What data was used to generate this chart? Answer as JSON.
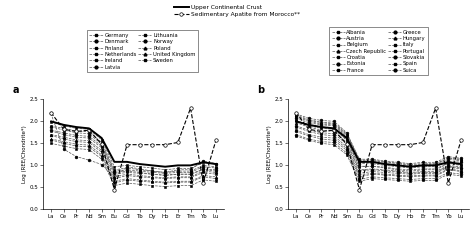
{
  "elements": [
    "La",
    "Ce",
    "Pr",
    "Nd",
    "Sm",
    "Eu",
    "Gd",
    "Tb",
    "Dy",
    "Ho",
    "Er",
    "Tm",
    "Yb",
    "Lu"
  ],
  "title_line1": "Upper Continental Crust",
  "title_line2": "Sedimentary Apatite from Morocco**",
  "ylabel": "Log (REE/Chondrite*)",
  "UCC": [
    2.0,
    1.92,
    1.87,
    1.84,
    1.62,
    1.08,
    1.08,
    1.03,
    1.0,
    0.97,
    1.0,
    1.0,
    1.07,
    1.03
  ],
  "Morocco": [
    2.2,
    1.82,
    1.77,
    1.8,
    1.48,
    0.45,
    1.47,
    1.47,
    1.47,
    1.47,
    1.52,
    2.3,
    0.6,
    1.57
  ],
  "panel_a_countries": [
    "Germany",
    "Denmark",
    "Finland",
    "Netherlands",
    "Ireland",
    "Latvia",
    "Lithuania",
    "Norway",
    "Poland",
    "United Kingdom",
    "Sweden"
  ],
  "panel_a_markers": [
    "s",
    "o",
    "s",
    "s",
    "s",
    "o",
    "s",
    "o",
    "^",
    "^",
    "s"
  ],
  "panel_a_linestyles": [
    "--",
    "--",
    "--",
    "--",
    "--",
    "--",
    "--",
    "--",
    "--",
    "--",
    "--"
  ],
  "panel_a_data": {
    "Germany": [
      1.98,
      1.9,
      1.84,
      1.82,
      1.58,
      0.97,
      1.0,
      0.97,
      0.94,
      0.9,
      0.93,
      0.93,
      1.07,
      1.03
    ],
    "Denmark": [
      1.88,
      1.8,
      1.74,
      1.72,
      1.48,
      0.87,
      0.9,
      0.87,
      0.84,
      0.82,
      0.84,
      0.84,
      0.97,
      0.94
    ],
    "Finland": [
      1.78,
      1.7,
      1.64,
      1.62,
      1.4,
      0.8,
      0.84,
      0.82,
      0.8,
      0.77,
      0.8,
      0.8,
      0.9,
      0.87
    ],
    "Netherlands": [
      1.68,
      1.6,
      1.54,
      1.52,
      1.3,
      0.7,
      0.77,
      0.74,
      0.72,
      0.7,
      0.72,
      0.72,
      0.84,
      0.8
    ],
    "Ireland": [
      1.58,
      1.5,
      1.44,
      1.42,
      1.2,
      0.6,
      0.67,
      0.64,
      0.62,
      0.6,
      0.62,
      0.62,
      0.74,
      0.7
    ],
    "Latvia": [
      2.18,
      1.37,
      1.2,
      1.12,
      1.02,
      0.72,
      0.97,
      0.92,
      0.87,
      0.84,
      0.9,
      0.9,
      1.1,
      1.04
    ],
    "Lithuania": [
      1.9,
      1.84,
      1.78,
      1.76,
      1.52,
      0.9,
      0.94,
      0.9,
      0.87,
      0.84,
      0.87,
      0.87,
      1.0,
      0.97
    ],
    "Norway": [
      1.8,
      1.74,
      1.68,
      1.66,
      1.44,
      0.84,
      0.87,
      0.84,
      0.8,
      0.78,
      0.8,
      0.8,
      0.92,
      0.9
    ],
    "Poland": [
      1.7,
      1.64,
      1.58,
      1.56,
      1.34,
      0.74,
      0.8,
      0.77,
      0.74,
      0.72,
      0.74,
      0.74,
      0.87,
      0.84
    ],
    "United Kingdom": [
      1.6,
      1.54,
      1.48,
      1.46,
      1.24,
      0.64,
      0.7,
      0.67,
      0.64,
      0.62,
      0.64,
      0.64,
      0.77,
      0.74
    ],
    "Sweden": [
      1.5,
      1.44,
      1.38,
      1.36,
      1.14,
      0.54,
      0.6,
      0.57,
      0.54,
      0.52,
      0.54,
      0.54,
      0.67,
      0.64
    ]
  },
  "panel_b_countries": [
    "Albania",
    "Austria",
    "Belgium",
    "Czech Republic",
    "Croatia",
    "Estonia",
    "France",
    "Greece",
    "Hungary",
    "Italy",
    "Portugal",
    "Slovakia",
    "Spain",
    "Suica"
  ],
  "panel_b_markers": [
    "s",
    "o",
    "s",
    "^",
    "s",
    "o",
    "s",
    "o",
    "^",
    "s",
    "s",
    "o",
    "s",
    "o"
  ],
  "panel_b_linestyles": [
    "--",
    "--",
    "--",
    "--",
    "--",
    "--",
    "--",
    "--",
    "--",
    "--",
    "--",
    "--",
    "--",
    "--"
  ],
  "panel_b_data": {
    "Albania": [
      2.12,
      2.02,
      1.97,
      1.94,
      1.7,
      1.1,
      1.1,
      1.07,
      1.04,
      1.0,
      1.02,
      1.02,
      1.17,
      1.12
    ],
    "Austria": [
      2.07,
      1.97,
      1.92,
      1.9,
      1.64,
      1.04,
      1.04,
      1.0,
      0.97,
      0.94,
      0.97,
      0.97,
      1.1,
      1.07
    ],
    "Belgium": [
      2.02,
      1.92,
      1.87,
      1.84,
      1.58,
      0.98,
      0.98,
      0.94,
      0.9,
      0.87,
      0.9,
      0.9,
      1.04,
      1.0
    ],
    "Czech Republic": [
      1.97,
      1.87,
      1.8,
      1.77,
      1.52,
      0.9,
      0.92,
      0.9,
      0.87,
      0.84,
      0.86,
      0.86,
      1.0,
      0.96
    ],
    "Croatia": [
      1.87,
      1.77,
      1.7,
      1.67,
      1.42,
      0.82,
      0.86,
      0.84,
      0.82,
      0.8,
      0.82,
      0.82,
      0.96,
      0.92
    ],
    "Estonia": [
      1.77,
      1.67,
      1.6,
      1.57,
      1.34,
      0.74,
      0.8,
      0.78,
      0.76,
      0.74,
      0.76,
      0.76,
      0.9,
      0.86
    ],
    "France": [
      1.67,
      1.57,
      1.5,
      1.47,
      1.24,
      0.64,
      0.7,
      0.68,
      0.66,
      0.64,
      0.66,
      0.66,
      0.8,
      0.76
    ],
    "Greece": [
      2.17,
      2.07,
      2.02,
      2.0,
      1.74,
      1.14,
      1.14,
      1.1,
      1.07,
      1.04,
      1.07,
      1.07,
      1.2,
      1.16
    ],
    "Hungary": [
      2.14,
      2.04,
      1.98,
      1.96,
      1.72,
      1.12,
      1.12,
      1.08,
      1.05,
      1.02,
      1.04,
      1.04,
      1.17,
      1.14
    ],
    "Italy": [
      2.1,
      2.0,
      1.94,
      1.92,
      1.67,
      1.07,
      1.07,
      1.04,
      1.0,
      0.97,
      1.0,
      1.0,
      1.14,
      1.1
    ],
    "Portugal": [
      2.0,
      1.9,
      1.84,
      1.82,
      1.57,
      0.97,
      0.98,
      0.96,
      0.92,
      0.9,
      0.92,
      0.92,
      1.06,
      1.02
    ],
    "Slovakia": [
      1.9,
      1.8,
      1.74,
      1.72,
      1.48,
      0.88,
      0.9,
      0.88,
      0.85,
      0.82,
      0.84,
      0.84,
      0.98,
      0.94
    ],
    "Spain": [
      1.8,
      1.7,
      1.64,
      1.62,
      1.38,
      0.78,
      0.82,
      0.8,
      0.78,
      0.76,
      0.78,
      0.78,
      0.92,
      0.88
    ],
    "Suica": [
      1.7,
      1.6,
      1.54,
      1.52,
      1.28,
      0.68,
      0.74,
      0.72,
      0.7,
      0.68,
      0.7,
      0.7,
      0.84,
      0.8
    ]
  },
  "background_color": "#ffffff",
  "ylim": [
    0.0,
    2.5
  ],
  "yticks": [
    0.0,
    0.5,
    1.0,
    1.5,
    2.0,
    2.5
  ]
}
